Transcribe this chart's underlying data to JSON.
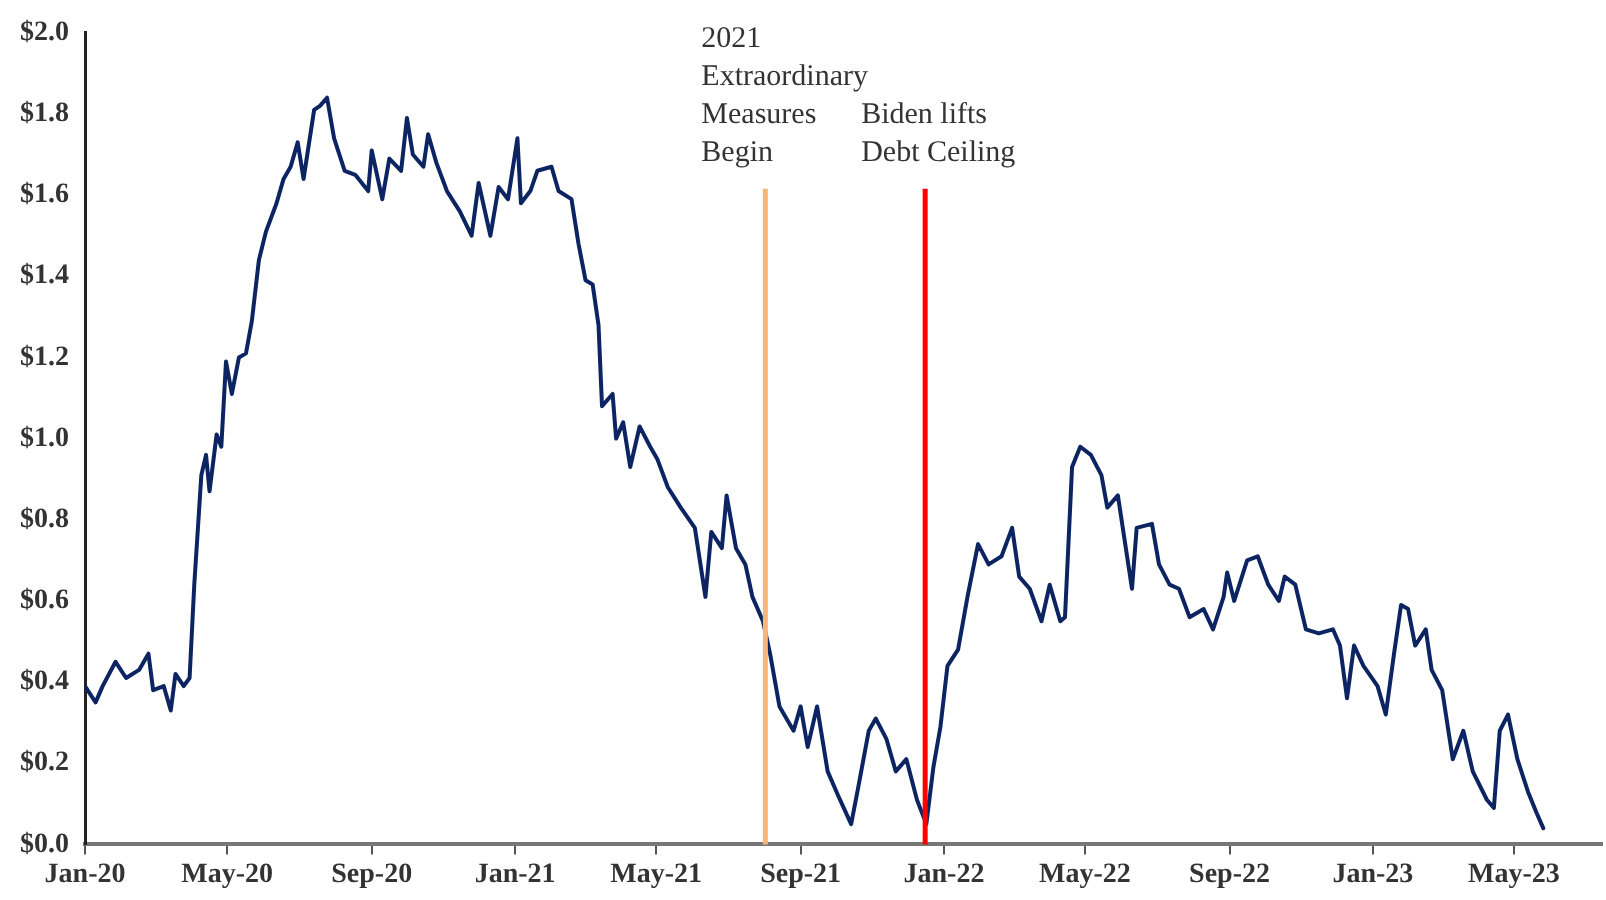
{
  "chart_data": {
    "type": "line",
    "color": "#0c2462",
    "marker": "none",
    "line_style": "solid",
    "xlim": [
      "2020-01-01",
      "2023-07-15"
    ],
    "xticks": [
      {
        "value": "2020-01-01",
        "label": "Jan-20"
      },
      {
        "value": "2020-05-01",
        "label": "May-20"
      },
      {
        "value": "2020-09-01",
        "label": "Sep-20"
      },
      {
        "value": "2021-01-01",
        "label": "Jan-21"
      },
      {
        "value": "2021-05-01",
        "label": "May-21"
      },
      {
        "value": "2021-09-01",
        "label": "Sep-21"
      },
      {
        "value": "2022-01-01",
        "label": "Jan-22"
      },
      {
        "value": "2022-05-01",
        "label": "May-22"
      },
      {
        "value": "2022-09-01",
        "label": "Sep-22"
      },
      {
        "value": "2023-01-01",
        "label": "Jan-23"
      },
      {
        "value": "2023-05-01",
        "label": "May-23"
      }
    ],
    "ylim": [
      0,
      2
    ],
    "yticks": [
      {
        "value": 0,
        "label": "$0.0"
      },
      {
        "value": 0.2,
        "label": "$0.2"
      },
      {
        "value": 0.4,
        "label": "$0.4"
      },
      {
        "value": 0.6,
        "label": "$0.6"
      },
      {
        "value": 0.8,
        "label": "$0.8"
      },
      {
        "value": 1,
        "label": "$1.0"
      },
      {
        "value": 1.2,
        "label": "$1.2"
      },
      {
        "value": 1.4,
        "label": "$1.4"
      },
      {
        "value": 1.6,
        "label": "$1.6"
      },
      {
        "value": 1.8,
        "label": "$1.8"
      },
      {
        "value": 2,
        "label": "$2.0"
      }
    ],
    "ref_lines": [
      {
        "axis": "x",
        "value": "2021-08-02",
        "label": "2021\nExtraordinary\nMeasures\nBegin",
        "color": "#f7b57a"
      },
      {
        "axis": "x",
        "value": "2021-12-16",
        "label": "Biden lifts\nDebt Ceiling",
        "color": "#ff0000"
      }
    ],
    "x": [
      "2020-01-01",
      "2020-01-10",
      "2020-01-16",
      "2020-01-27",
      "2020-02-05",
      "2020-02-16",
      "2020-02-24",
      "2020-02-28",
      "2020-03-08",
      "2020-03-14",
      "2020-03-18",
      "2020-03-25",
      "2020-03-30",
      "2020-04-03",
      "2020-04-09",
      "2020-04-13",
      "2020-04-16",
      "2020-04-22",
      "2020-04-26",
      "2020-04-30",
      "2020-05-05",
      "2020-05-11",
      "2020-05-17",
      "2020-05-22",
      "2020-05-28",
      "2020-06-03",
      "2020-06-12",
      "2020-06-18",
      "2020-06-24",
      "2020-06-30",
      "2020-07-05",
      "2020-07-14",
      "2020-07-19",
      "2020-07-25",
      "2020-07-31",
      "2020-08-09",
      "2020-08-18",
      "2020-08-29",
      "2020-09-01",
      "2020-09-10",
      "2020-09-16",
      "2020-09-26",
      "2020-10-01",
      "2020-10-06",
      "2020-10-15",
      "2020-10-19",
      "2020-10-26",
      "2020-11-04",
      "2020-11-15",
      "2020-11-25",
      "2020-12-01",
      "2020-12-11",
      "2020-12-18",
      "2020-12-26",
      "2021-01-03",
      "2021-01-06",
      "2021-01-14",
      "2021-01-20",
      "2021-02-01",
      "2021-02-07",
      "2021-02-18",
      "2021-02-24",
      "2021-03-02",
      "2021-03-08",
      "2021-03-13",
      "2021-03-16",
      "2021-03-25",
      "2021-03-28",
      "2021-04-03",
      "2021-04-09",
      "2021-04-17",
      "2021-04-26",
      "2021-05-02",
      "2021-05-11",
      "2021-05-22",
      "2021-06-03",
      "2021-06-12",
      "2021-06-17",
      "2021-06-26",
      "2021-06-30",
      "2021-07-08",
      "2021-07-16",
      "2021-07-22",
      "2021-07-31",
      "2021-08-06",
      "2021-08-14",
      "2021-08-26",
      "2021-09-01",
      "2021-09-07",
      "2021-09-15",
      "2021-09-24",
      "2021-10-03",
      "2021-10-14",
      "2021-10-20",
      "2021-10-29",
      "2021-11-04",
      "2021-11-13",
      "2021-11-21",
      "2021-11-30",
      "2021-12-09",
      "2021-12-17",
      "2021-12-23",
      "2021-12-29",
      "2022-01-04",
      "2022-01-13",
      "2022-01-21",
      "2022-01-30",
      "2022-02-08",
      "2022-02-19",
      "2022-02-28",
      "2022-03-06",
      "2022-03-15",
      "2022-03-25",
      "2022-04-01",
      "2022-04-10",
      "2022-04-14",
      "2022-04-20",
      "2022-04-27",
      "2022-05-06",
      "2022-05-15",
      "2022-05-20",
      "2022-05-29",
      "2022-06-10",
      "2022-06-14",
      "2022-06-27",
      "2022-07-03",
      "2022-07-12",
      "2022-07-20",
      "2022-07-29",
      "2022-08-10",
      "2022-08-18",
      "2022-08-27",
      "2022-08-30",
      "2022-09-05",
      "2022-09-16",
      "2022-09-25",
      "2022-10-04",
      "2022-10-13",
      "2022-10-18",
      "2022-10-27",
      "2022-11-05",
      "2022-11-16",
      "2022-11-28",
      "2022-12-04",
      "2022-12-10",
      "2022-12-16",
      "2022-12-24",
      "2023-01-05",
      "2023-01-12",
      "2023-01-19",
      "2023-01-25",
      "2023-01-31",
      "2023-02-06",
      "2023-02-15",
      "2023-02-20",
      "2023-03-01",
      "2023-03-10",
      "2023-03-19",
      "2023-03-27",
      "2023-04-08",
      "2023-04-14",
      "2023-04-19",
      "2023-04-26",
      "2023-05-04",
      "2023-05-13",
      "2023-05-20",
      "2023-05-26"
    ],
    "values": [
      0.39,
      0.35,
      0.39,
      0.45,
      0.41,
      0.43,
      0.47,
      0.38,
      0.39,
      0.33,
      0.42,
      0.39,
      0.41,
      0.64,
      0.91,
      0.96,
      0.87,
      1.01,
      0.98,
      1.19,
      1.11,
      1.2,
      1.21,
      1.29,
      1.44,
      1.51,
      1.58,
      1.64,
      1.67,
      1.73,
      1.64,
      1.81,
      1.82,
      1.84,
      1.74,
      1.66,
      1.65,
      1.61,
      1.71,
      1.59,
      1.69,
      1.66,
      1.79,
      1.7,
      1.67,
      1.75,
      1.68,
      1.61,
      1.56,
      1.5,
      1.63,
      1.5,
      1.62,
      1.59,
      1.74,
      1.58,
      1.61,
      1.66,
      1.67,
      1.61,
      1.59,
      1.48,
      1.39,
      1.38,
      1.28,
      1.08,
      1.11,
      1.0,
      1.04,
      0.93,
      1.03,
      0.98,
      0.95,
      0.88,
      0.83,
      0.78,
      0.61,
      0.77,
      0.73,
      0.86,
      0.73,
      0.69,
      0.61,
      0.55,
      0.47,
      0.34,
      0.28,
      0.34,
      0.24,
      0.34,
      0.18,
      0.12,
      0.05,
      0.14,
      0.28,
      0.31,
      0.26,
      0.18,
      0.21,
      0.11,
      0.05,
      0.19,
      0.29,
      0.44,
      0.48,
      0.61,
      0.74,
      0.69,
      0.71,
      0.78,
      0.66,
      0.63,
      0.55,
      0.64,
      0.55,
      0.56,
      0.93,
      0.98,
      0.96,
      0.91,
      0.83,
      0.86,
      0.63,
      0.78,
      0.79,
      0.69,
      0.64,
      0.63,
      0.56,
      0.58,
      0.53,
      0.61,
      0.67,
      0.6,
      0.7,
      0.71,
      0.64,
      0.6,
      0.66,
      0.64,
      0.53,
      0.52,
      0.53,
      0.49,
      0.36,
      0.49,
      0.44,
      0.39,
      0.32,
      0.47,
      0.59,
      0.58,
      0.49,
      0.53,
      0.43,
      0.38,
      0.21,
      0.28,
      0.18,
      0.11,
      0.09,
      0.28,
      0.32,
      0.21,
      0.13,
      0.08,
      0.04
    ]
  }
}
